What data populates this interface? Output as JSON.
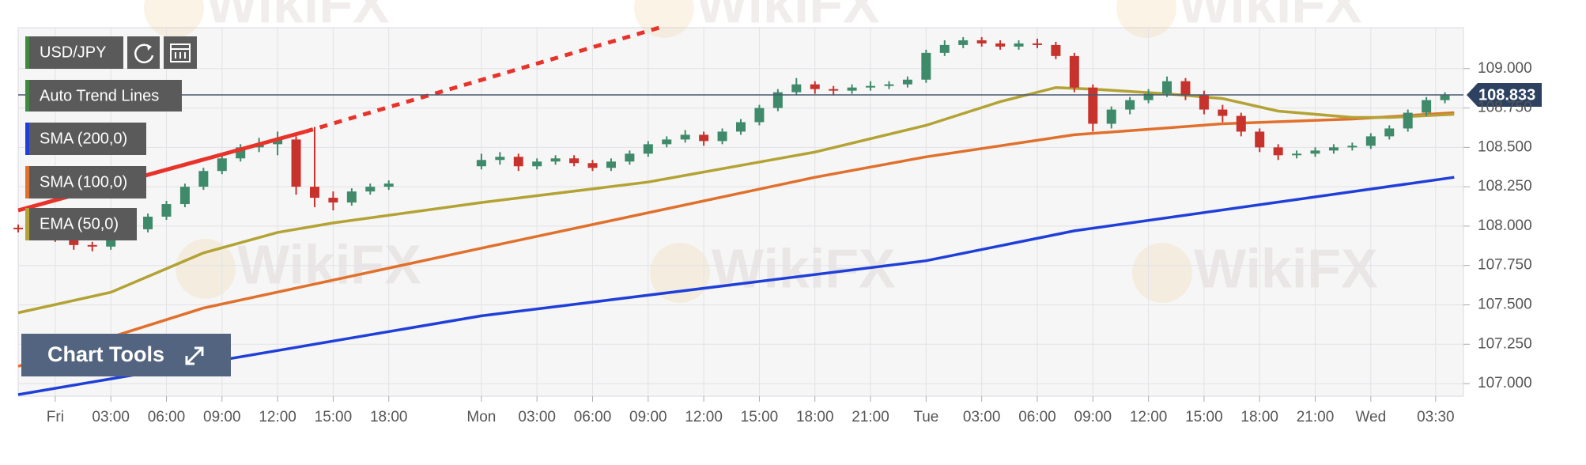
{
  "chart_data": {
    "type": "candlestick",
    "symbol": "USD/JPY",
    "candles": {
      "up_color": "#3f8a6a",
      "down_color": "#c8322c",
      "x": [
        -2,
        -1,
        0,
        1,
        2,
        3,
        4,
        5,
        6,
        7,
        8,
        9,
        10,
        11,
        12,
        13,
        14,
        15,
        16,
        17,
        18,
        23,
        24,
        25,
        26,
        27,
        28,
        29,
        30,
        31,
        32,
        33,
        34,
        35,
        36,
        37,
        38,
        39,
        40,
        41,
        42,
        43,
        44,
        45,
        46,
        47,
        48,
        49,
        50,
        51,
        52,
        53,
        54,
        55,
        56,
        57,
        58,
        59,
        60,
        61,
        62,
        63,
        64,
        65,
        66,
        67,
        68,
        69,
        70,
        71,
        72,
        73,
        74,
        75
      ],
      "open": [
        107.99,
        107.98,
        107.96,
        107.92,
        107.88,
        107.87,
        107.93,
        107.98,
        108.06,
        108.14,
        108.25,
        108.35,
        108.43,
        108.5,
        108.52,
        108.55,
        108.25,
        108.18,
        108.15,
        108.22,
        108.25,
        108.38,
        108.42,
        108.44,
        108.38,
        108.41,
        108.43,
        108.4,
        108.37,
        108.41,
        108.46,
        108.52,
        108.55,
        108.58,
        108.54,
        108.6,
        108.66,
        108.75,
        108.85,
        108.9,
        108.87,
        108.86,
        108.88,
        108.89,
        108.9,
        108.93,
        109.1,
        109.15,
        109.18,
        109.16,
        109.14,
        109.16,
        109.15,
        109.08,
        108.88,
        108.65,
        108.74,
        108.8,
        108.84,
        108.92,
        108.83,
        108.74,
        108.7,
        108.6,
        108.5,
        108.45,
        108.46,
        108.48,
        108.5,
        108.51,
        108.57,
        108.62,
        108.72,
        108.8
      ],
      "high": [
        108.01,
        108.0,
        107.98,
        107.94,
        107.9,
        107.95,
        108.0,
        108.08,
        108.16,
        108.27,
        108.37,
        108.46,
        108.52,
        108.56,
        108.6,
        108.57,
        108.63,
        108.22,
        108.24,
        108.27,
        108.29,
        108.46,
        108.47,
        108.46,
        108.43,
        108.45,
        108.45,
        108.42,
        108.43,
        108.48,
        108.54,
        108.57,
        108.61,
        108.6,
        108.62,
        108.68,
        108.77,
        108.87,
        108.94,
        108.92,
        108.89,
        108.9,
        108.92,
        108.92,
        108.95,
        109.12,
        109.18,
        109.2,
        109.2,
        109.18,
        109.18,
        109.19,
        109.17,
        109.1,
        108.9,
        108.76,
        108.82,
        108.87,
        108.95,
        108.94,
        108.86,
        108.77,
        108.72,
        108.62,
        108.52,
        108.48,
        108.5,
        108.52,
        108.53,
        108.59,
        108.64,
        108.74,
        108.82,
        108.85
      ],
      "low": [
        107.96,
        107.93,
        107.9,
        107.85,
        107.84,
        107.85,
        107.91,
        107.96,
        108.04,
        108.12,
        108.23,
        108.33,
        108.41,
        108.47,
        108.45,
        108.2,
        108.12,
        108.1,
        108.13,
        108.2,
        108.23,
        108.36,
        108.39,
        108.35,
        108.36,
        108.39,
        108.38,
        108.35,
        108.35,
        108.39,
        108.44,
        108.5,
        108.53,
        108.51,
        108.52,
        108.58,
        108.64,
        108.73,
        108.83,
        108.84,
        108.83,
        108.84,
        108.86,
        108.87,
        108.88,
        108.91,
        109.08,
        109.13,
        109.14,
        109.12,
        109.12,
        109.13,
        109.06,
        108.85,
        108.6,
        108.62,
        108.71,
        108.78,
        108.82,
        108.8,
        108.71,
        108.66,
        108.57,
        108.47,
        108.42,
        108.43,
        108.44,
        108.46,
        108.48,
        108.49,
        108.55,
        108.6,
        108.7,
        108.78
      ],
      "close": [
        107.98,
        107.96,
        107.92,
        107.88,
        107.87,
        107.93,
        107.98,
        108.06,
        108.14,
        108.25,
        108.35,
        108.43,
        108.5,
        108.52,
        108.55,
        108.25,
        108.18,
        108.15,
        108.22,
        108.25,
        108.27,
        108.42,
        108.44,
        108.38,
        108.41,
        108.43,
        108.4,
        108.37,
        108.41,
        108.46,
        108.52,
        108.55,
        108.58,
        108.54,
        108.6,
        108.66,
        108.75,
        108.85,
        108.9,
        108.87,
        108.86,
        108.88,
        108.89,
        108.9,
        108.93,
        109.1,
        109.15,
        109.18,
        109.16,
        109.14,
        109.16,
        109.15,
        109.08,
        108.88,
        108.65,
        108.74,
        108.8,
        108.84,
        108.92,
        108.83,
        108.74,
        108.7,
        108.6,
        108.5,
        108.45,
        108.46,
        108.48,
        108.5,
        108.51,
        108.57,
        108.62,
        108.72,
        108.8,
        108.83
      ]
    },
    "series": [
      {
        "name": "SMA (200,0)",
        "color": "#1f3fd8",
        "x": [
          -2,
          23,
          47,
          55,
          75.5
        ],
        "values": [
          106.93,
          107.43,
          107.78,
          107.97,
          108.31
        ]
      },
      {
        "name": "SMA (100,0)",
        "color": "#e0702c",
        "x": [
          -2,
          8,
          23,
          41,
          47,
          55,
          63,
          70,
          75.5
        ],
        "values": [
          107.11,
          107.48,
          107.86,
          108.31,
          108.44,
          108.58,
          108.65,
          108.68,
          108.72
        ]
      },
      {
        "name": "EMA (50,0)",
        "color": "#b3a234",
        "x": [
          -2,
          3,
          8,
          12,
          15,
          23,
          32,
          41,
          47,
          51,
          54,
          56,
          60,
          63,
          66,
          70,
          72,
          75.5
        ],
        "values": [
          107.45,
          107.58,
          107.83,
          107.96,
          108.02,
          108.15,
          108.28,
          108.47,
          108.64,
          108.79,
          108.88,
          108.87,
          108.84,
          108.81,
          108.73,
          108.69,
          108.69,
          108.71
        ]
      }
    ],
    "trend_line": {
      "name": "Auto Trend Lines",
      "color": "#e8332a",
      "x": [
        -2,
        13.5,
        32.6
      ],
      "values": [
        108.1,
        108.6,
        109.26
      ]
    },
    "last_price": 108.833,
    "xlim": [
      -2,
      76
    ],
    "ylim": [
      106.92,
      109.26
    ],
    "xticks": [
      {
        "value": 0,
        "label": "Fri"
      },
      {
        "value": 3,
        "label": "03:00"
      },
      {
        "value": 6,
        "label": "06:00"
      },
      {
        "value": 9,
        "label": "09:00"
      },
      {
        "value": 12,
        "label": "12:00"
      },
      {
        "value": 15,
        "label": "15:00"
      },
      {
        "value": 18,
        "label": "18:00"
      },
      {
        "value": 23,
        "label": "Mon"
      },
      {
        "value": 26,
        "label": "03:00"
      },
      {
        "value": 29,
        "label": "06:00"
      },
      {
        "value": 32,
        "label": "09:00"
      },
      {
        "value": 35,
        "label": "12:00"
      },
      {
        "value": 38,
        "label": "15:00"
      },
      {
        "value": 41,
        "label": "18:00"
      },
      {
        "value": 44,
        "label": "21:00"
      },
      {
        "value": 47,
        "label": "Tue"
      },
      {
        "value": 50,
        "label": "03:00"
      },
      {
        "value": 53,
        "label": "06:00"
      },
      {
        "value": 56,
        "label": "09:00"
      },
      {
        "value": 59,
        "label": "12:00"
      },
      {
        "value": 62,
        "label": "15:00"
      },
      {
        "value": 65,
        "label": "18:00"
      },
      {
        "value": 68,
        "label": "21:00"
      },
      {
        "value": 71,
        "label": "Wed"
      },
      {
        "value": 74.5,
        "label": "03:30"
      }
    ],
    "yticks": [
      {
        "value": 107,
        "label": "107.000"
      },
      {
        "value": 107.25,
        "label": "107.250"
      },
      {
        "value": 107.5,
        "label": "107.500"
      },
      {
        "value": 107.75,
        "label": "107.750"
      },
      {
        "value": 108,
        "label": "108.000"
      },
      {
        "value": 108.25,
        "label": "108.250"
      },
      {
        "value": 108.5,
        "label": "108.500"
      },
      {
        "value": 108.75,
        "label": "108.750"
      },
      {
        "value": 109,
        "label": "109.000"
      }
    ],
    "grid": true
  },
  "ui": {
    "chart_tools": "Chart Tools",
    "watermark": "WikiFX"
  }
}
